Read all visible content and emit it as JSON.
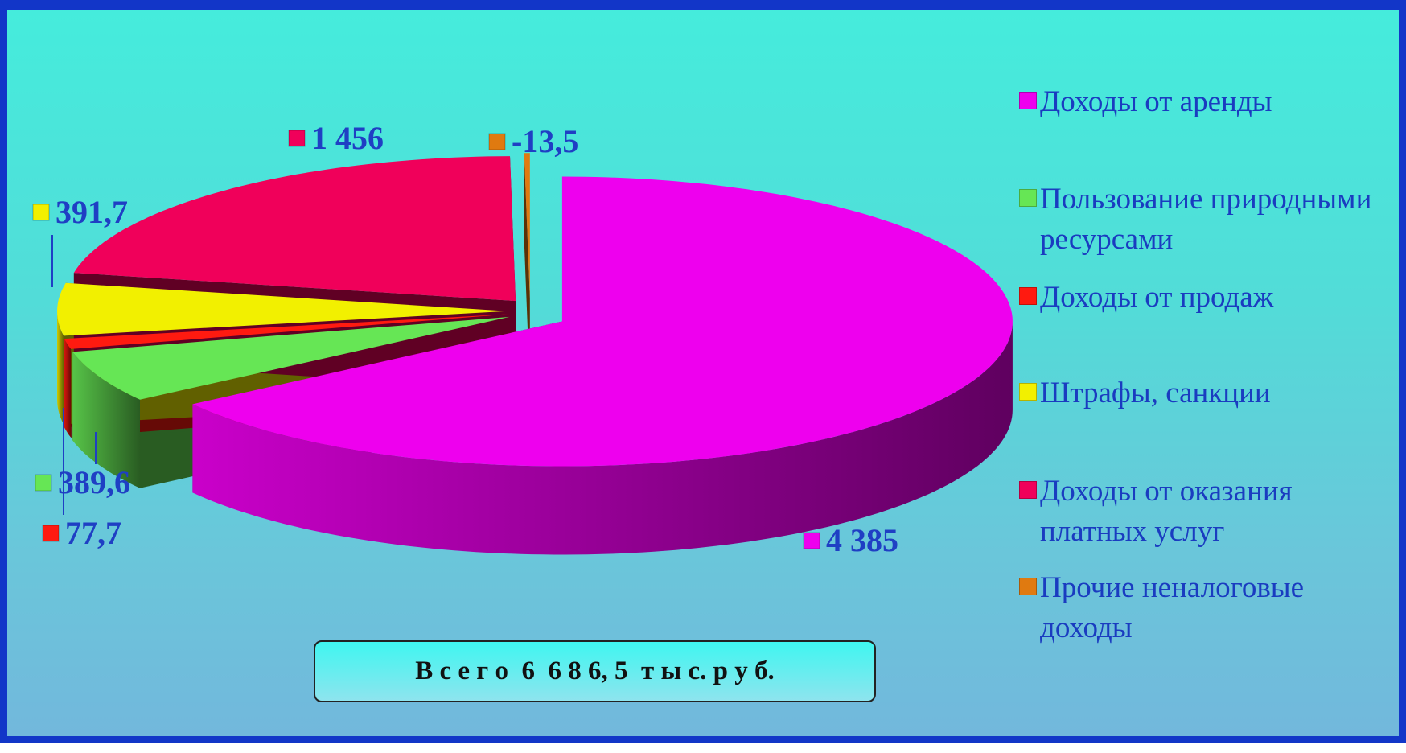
{
  "chart_data": {
    "type": "pie",
    "categories": [
      "Доходы от аренды",
      "Пользование природными ресурсами",
      "Доходы от продаж",
      "Штрафы, санкции",
      "Доходы от оказания платных услуг",
      "Прочие неналоговые доходы"
    ],
    "values": [
      4385,
      389.6,
      77.7,
      391.7,
      1456,
      -13.5
    ],
    "value_labels": [
      "4 385",
      "389,6",
      "77,7",
      "391,7",
      "1 456",
      "-13,5"
    ],
    "colors": [
      "#ee00ee",
      "#66e655",
      "#ff1a10",
      "#f2f000",
      "#f0005a",
      "#e07a10"
    ],
    "legend": "right",
    "annotation": "В с е г о  6  6 8 6, 5  т ы с. р у б."
  }
}
